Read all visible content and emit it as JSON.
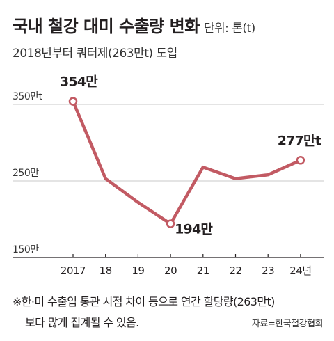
{
  "header": {
    "title": "국내 철강 대미 수출량 변화",
    "unit": "단위: 톤(t)",
    "subtitle": "2018년부터 쿼터제(263만t) 도입"
  },
  "chart_data": {
    "type": "line",
    "x": [
      "2017",
      "18",
      "19",
      "20",
      "21",
      "22",
      "23",
      "24년"
    ],
    "series": [
      {
        "values": [
          354,
          253,
          222,
          194,
          268,
          253,
          258,
          277
        ]
      }
    ],
    "ylim": [
      150,
      350
    ],
    "yticks": [
      150,
      250,
      350
    ],
    "ytick_labels": [
      "150만",
      "250만",
      "350만t"
    ],
    "grid": true,
    "annotations": [
      {
        "index": 0,
        "text": "354만"
      },
      {
        "index": 3,
        "text": "194만"
      },
      {
        "index": 7,
        "text": "277만t"
      }
    ],
    "colors": {
      "line": "#c25a63",
      "grid": "#c8c8c8",
      "axis": "#231f20"
    }
  },
  "footer": {
    "note_line1": "※한·미 수출입 통관 시점 차이 등으로 연간 할당량(263만t)",
    "note_line2": "보다 많게 집계될 수 있음.",
    "source": "자료=한국철강협회"
  }
}
